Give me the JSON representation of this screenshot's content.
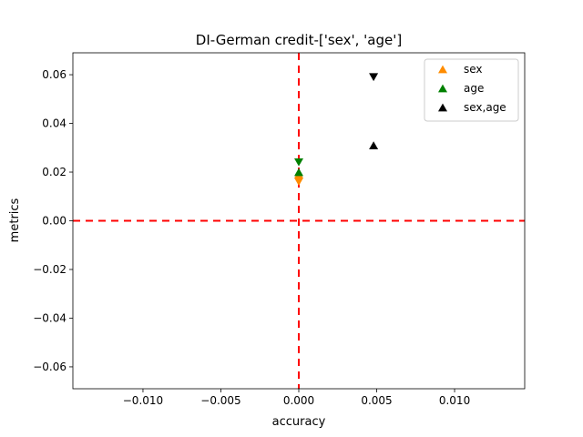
{
  "chart_data": {
    "type": "scatter",
    "title": "DI-German credit-['sex', 'age']",
    "xlabel": "accuracy",
    "ylabel": "metrics",
    "xlim": [
      -0.0145,
      0.0145
    ],
    "ylim": [
      -0.069,
      0.069
    ],
    "xticks": [
      -0.01,
      -0.005,
      0.0,
      0.005,
      0.01
    ],
    "xtick_labels": [
      "−0.010",
      "−0.005",
      "0.000",
      "0.005",
      "0.010"
    ],
    "yticks": [
      -0.06,
      -0.04,
      -0.02,
      0.0,
      0.02,
      0.04,
      0.06
    ],
    "ytick_labels": [
      "−0.06",
      "−0.04",
      "−0.02",
      "0.00",
      "0.02",
      "0.04",
      "0.06"
    ],
    "grid": false,
    "legend_position": "top-right",
    "reference_lines": {
      "x": 0,
      "y": 0,
      "color": "#ff0000",
      "style": "dashed"
    },
    "series": [
      {
        "name": "sex",
        "color": "#ff8c00",
        "points": [
          {
            "x": 0.0,
            "y": 0.019,
            "marker": "triangle-up"
          },
          {
            "x": 0.0,
            "y": 0.016,
            "marker": "triangle-down"
          }
        ]
      },
      {
        "name": "age",
        "color": "#008000",
        "points": [
          {
            "x": 0.0,
            "y": 0.02,
            "marker": "triangle-up"
          },
          {
            "x": 0.0,
            "y": 0.024,
            "marker": "triangle-down"
          }
        ]
      },
      {
        "name": "sex,age",
        "color": "#000000",
        "points": [
          {
            "x": 0.0048,
            "y": 0.031,
            "marker": "triangle-up"
          },
          {
            "x": 0.0048,
            "y": 0.059,
            "marker": "triangle-down"
          }
        ]
      }
    ]
  }
}
